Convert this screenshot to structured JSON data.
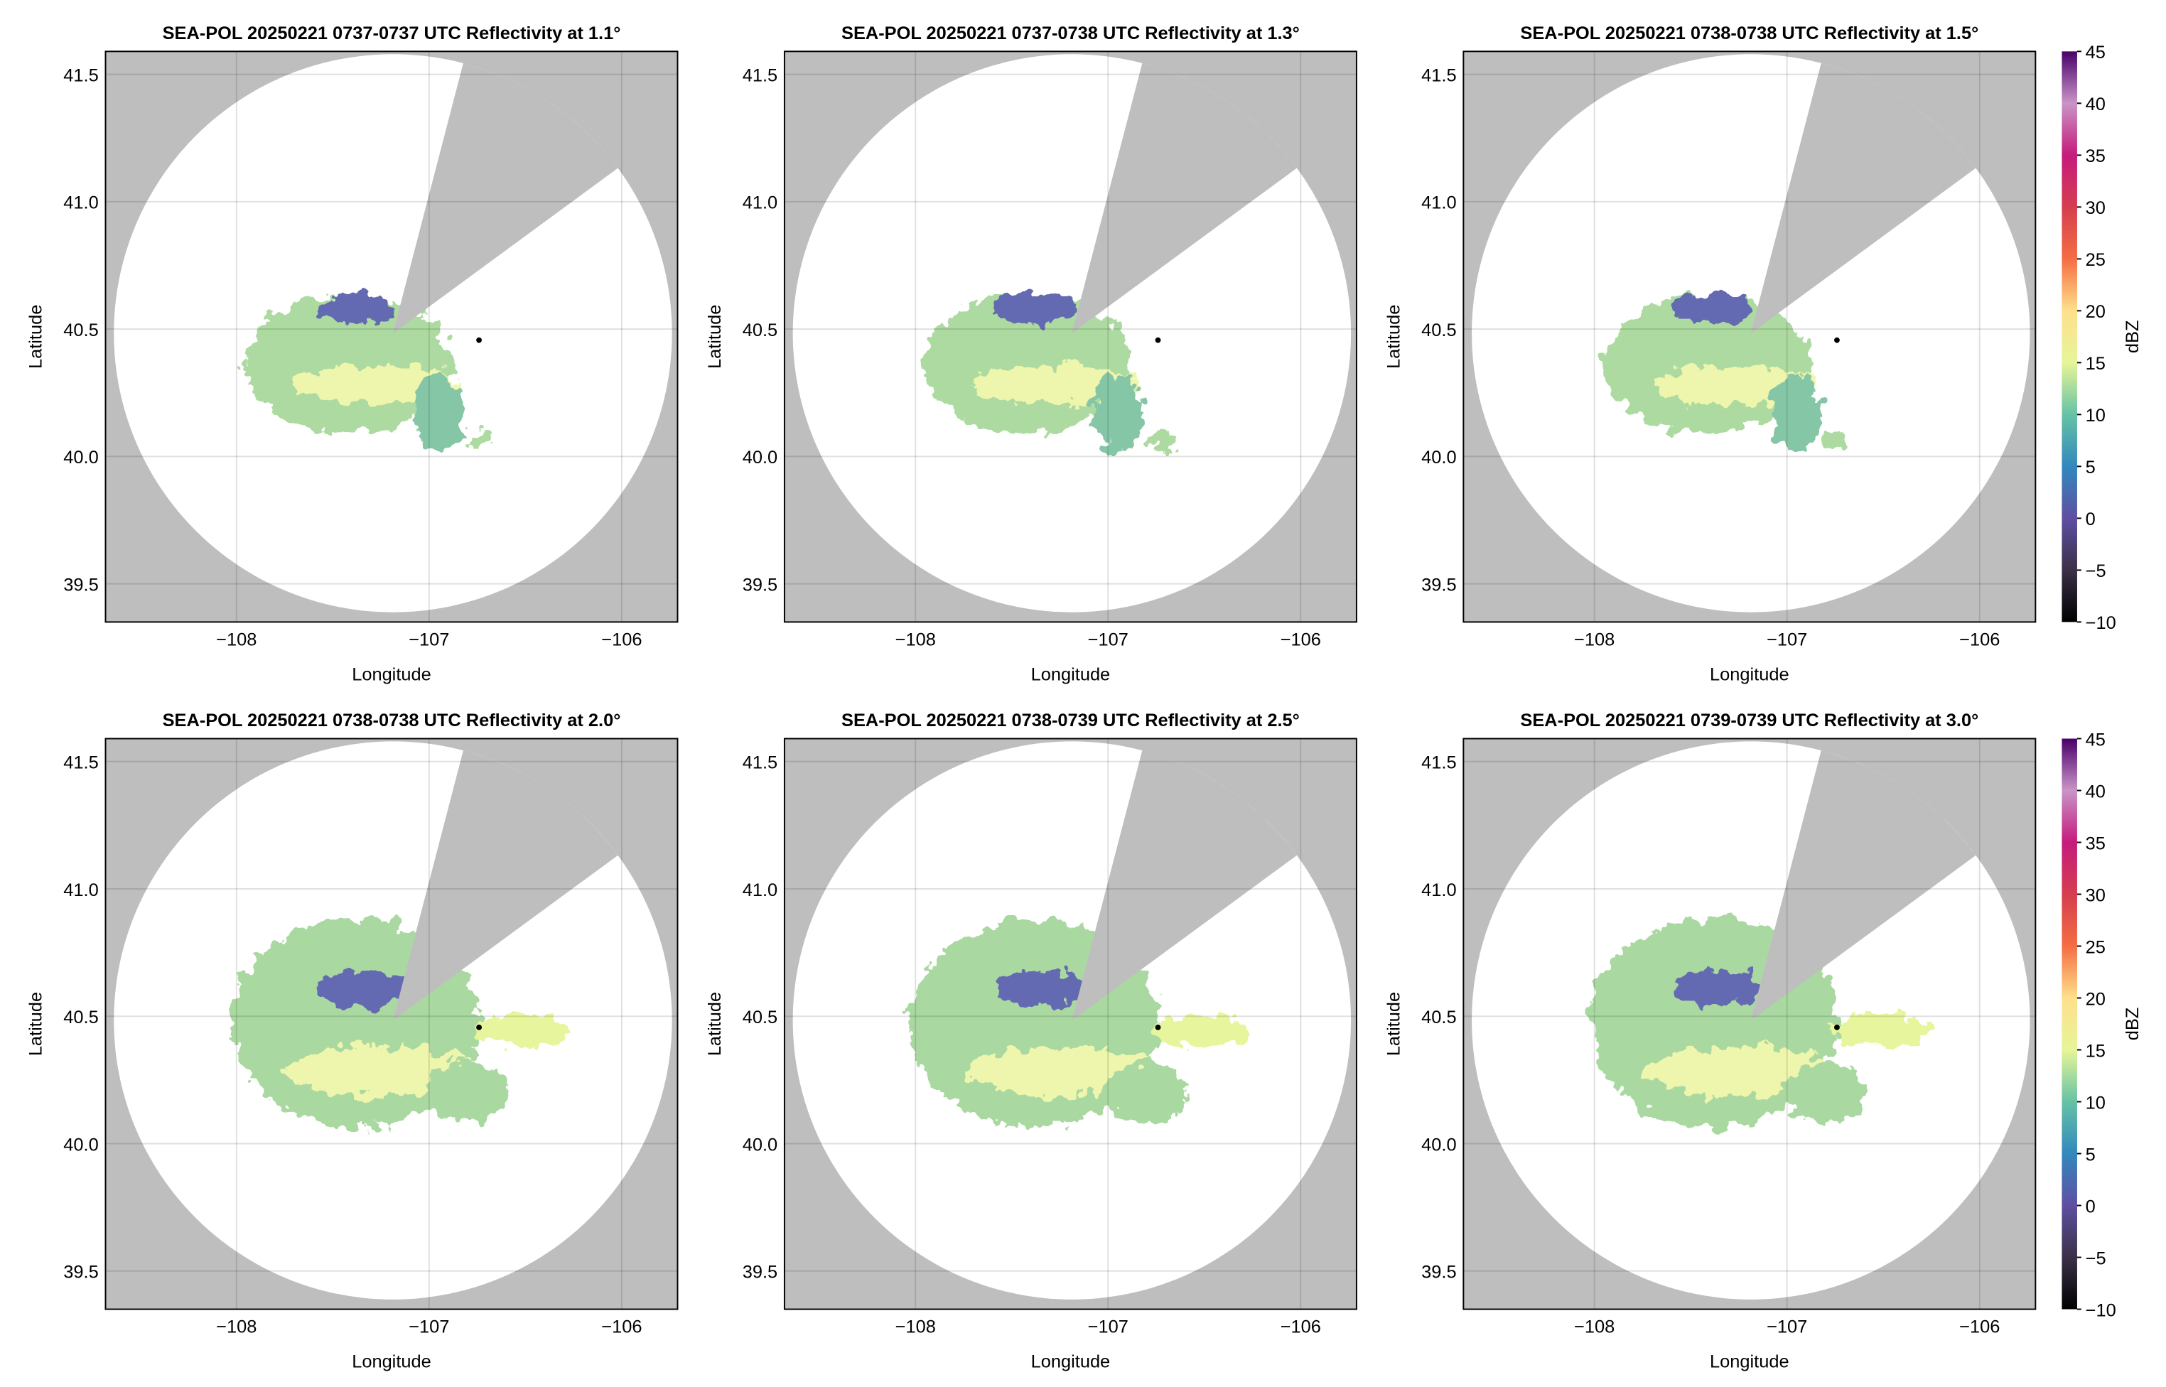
{
  "chart_data": [
    {
      "type": "heatmap",
      "title": "SEA-POL 20250221 0737-0737 UTC Reflectivity at 1.1°",
      "xlabel": "Longitude",
      "ylabel": "Latitude",
      "xlim": [
        -108.68,
        -105.71
      ],
      "ylim": [
        39.35,
        41.59
      ],
      "xticks": [
        {
          "value": -108,
          "label": "−108"
        },
        {
          "value": -107,
          "label": "−107"
        },
        {
          "value": -106,
          "label": "−106"
        }
      ],
      "yticks": [
        39.5,
        {
          "value": 40.0,
          "label": "40.0"
        },
        40.5,
        {
          "value": 41.0,
          "label": "41.0"
        },
        41.5
      ],
      "grid": true
    },
    {
      "type": "heatmap",
      "title": "SEA-POL 20250221 0737-0738 UTC Reflectivity at 1.3°",
      "xlabel": "Longitude",
      "ylabel": "Latitude",
      "xlim": [
        -108.68,
        -105.71
      ],
      "ylim": [
        39.35,
        41.59
      ],
      "xticks": [
        {
          "value": -108,
          "label": "−108"
        },
        {
          "value": -107,
          "label": "−107"
        },
        {
          "value": -106,
          "label": "−106"
        }
      ],
      "yticks": [
        39.5,
        {
          "value": 40.0,
          "label": "40.0"
        },
        40.5,
        {
          "value": 41.0,
          "label": "41.0"
        },
        41.5
      ],
      "grid": true
    },
    {
      "type": "heatmap",
      "title": "SEA-POL 20250221 0738-0738 UTC Reflectivity at 1.5°",
      "xlabel": "Longitude",
      "ylabel": "Latitude",
      "xlim": [
        -108.68,
        -105.71
      ],
      "ylim": [
        39.35,
        41.59
      ],
      "xticks": [
        {
          "value": -108,
          "label": "−108"
        },
        {
          "value": -107,
          "label": "−107"
        },
        {
          "value": -106,
          "label": "−106"
        }
      ],
      "yticks": [
        39.5,
        {
          "value": 40.0,
          "label": "40.0"
        },
        40.5,
        {
          "value": 41.0,
          "label": "41.0"
        },
        41.5
      ],
      "grid": true,
      "colorbar": {
        "label": "dBZ",
        "lim": [
          -10,
          45
        ],
        "ticks": [
          {
            "value": -10,
            "label": "−10"
          },
          {
            "value": -5,
            "label": "−5"
          },
          0,
          5,
          10,
          15,
          20,
          25,
          30,
          35,
          40,
          45
        ],
        "colors": [
          "#000000",
          "#3b3048",
          "#5e4fa2",
          "#3288bd",
          "#66c2a5",
          "#e6f598",
          "#fee08b",
          "#f46d43",
          "#d53e4f",
          "#c51b7d",
          "#c994c7",
          "#49006a"
        ]
      }
    },
    {
      "type": "heatmap",
      "title": "SEA-POL 20250221 0738-0738 UTC Reflectivity at 2.0°",
      "xlabel": "Longitude",
      "ylabel": "Latitude",
      "xlim": [
        -108.68,
        -105.71
      ],
      "ylim": [
        39.35,
        41.59
      ],
      "xticks": [
        {
          "value": -108,
          "label": "−108"
        },
        {
          "value": -107,
          "label": "−107"
        },
        {
          "value": -106,
          "label": "−106"
        }
      ],
      "yticks": [
        39.5,
        {
          "value": 40.0,
          "label": "40.0"
        },
        40.5,
        {
          "value": 41.0,
          "label": "41.0"
        },
        41.5
      ],
      "grid": true
    },
    {
      "type": "heatmap",
      "title": "SEA-POL 20250221 0738-0739 UTC Reflectivity at 2.5°",
      "xlabel": "Longitude",
      "ylabel": "Latitude",
      "xlim": [
        -108.68,
        -105.71
      ],
      "ylim": [
        39.35,
        41.59
      ],
      "xticks": [
        {
          "value": -108,
          "label": "−108"
        },
        {
          "value": -107,
          "label": "−107"
        },
        {
          "value": -106,
          "label": "−106"
        }
      ],
      "yticks": [
        39.5,
        {
          "value": 40.0,
          "label": "40.0"
        },
        40.5,
        {
          "value": 41.0,
          "label": "41.0"
        },
        41.5
      ],
      "grid": true
    },
    {
      "type": "heatmap",
      "title": "SEA-POL 20250221 0739-0739 UTC Reflectivity at 3.0°",
      "xlabel": "Longitude",
      "ylabel": "Latitude",
      "xlim": [
        -108.68,
        -105.71
      ],
      "ylim": [
        39.35,
        41.59
      ],
      "xticks": [
        {
          "value": -108,
          "label": "−108"
        },
        {
          "value": -107,
          "label": "−107"
        },
        {
          "value": -106,
          "label": "−106"
        }
      ],
      "yticks": [
        39.5,
        {
          "value": 40.0,
          "label": "40.0"
        },
        40.5,
        {
          "value": 41.0,
          "label": "41.0"
        },
        41.5
      ],
      "grid": true,
      "colorbar": {
        "label": "dBZ",
        "lim": [
          -10,
          45
        ],
        "ticks": [
          {
            "value": -10,
            "label": "−10"
          },
          {
            "value": -5,
            "label": "−5"
          },
          0,
          5,
          10,
          15,
          20,
          25,
          30,
          35,
          40,
          45
        ],
        "colors": [
          "#000000",
          "#3b3048",
          "#5e4fa2",
          "#3288bd",
          "#66c2a5",
          "#e6f598",
          "#fee08b",
          "#f46d43",
          "#d53e4f",
          "#c51b7d",
          "#c994c7",
          "#49006a"
        ]
      }
    }
  ]
}
